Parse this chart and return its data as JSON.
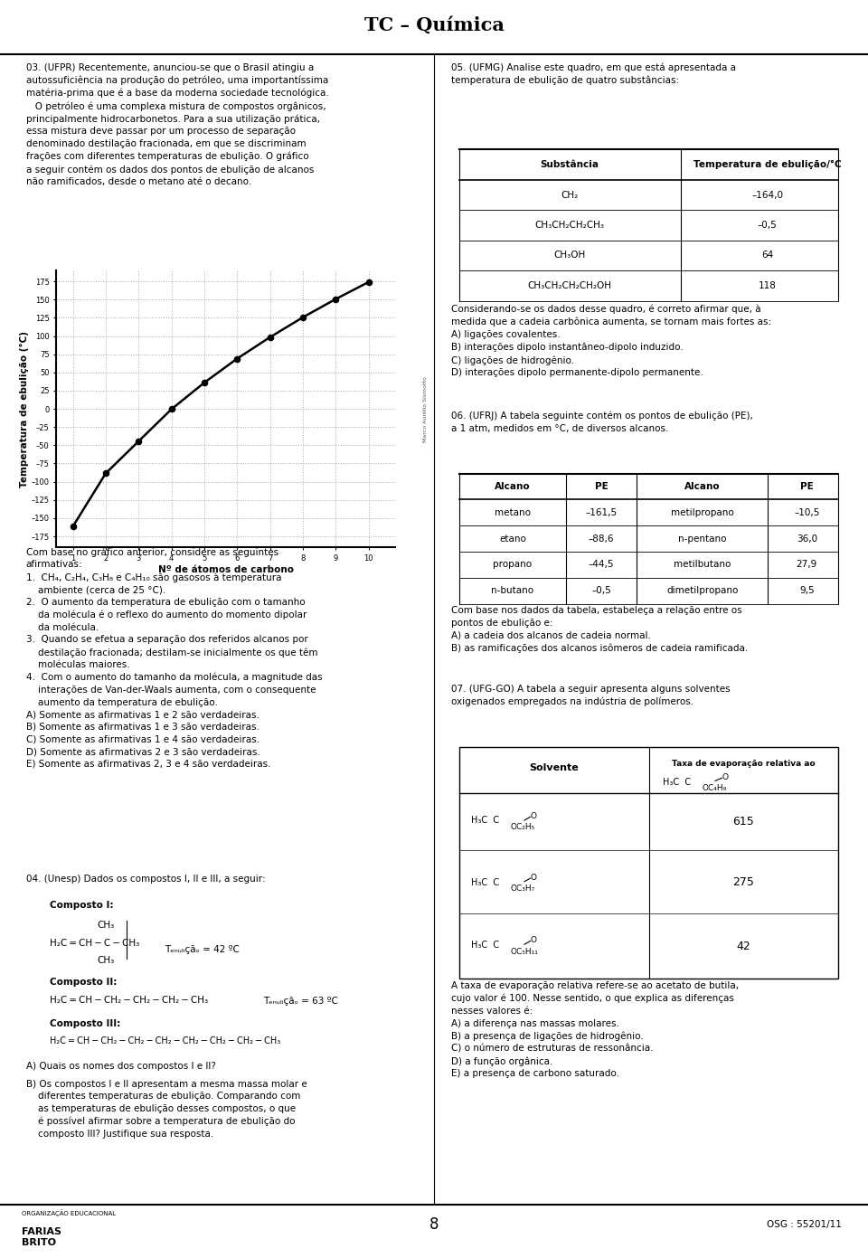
{
  "title": "TC – Química",
  "bg_color": "#ffffff",
  "text_color": "#000000",
  "page_number": "8",
  "osg": "OSG : 55201/11",
  "graph": {
    "x": [
      1,
      2,
      3,
      4,
      5,
      6,
      7,
      8,
      9,
      10
    ],
    "y": [
      -161.5,
      -88.6,
      -44.5,
      -0.5,
      36.0,
      69.0,
      98.4,
      125.7,
      150.8,
      174.1
    ],
    "xlabel": "Nº de átomos de carbono",
    "ylabel": "Temperatura de ebulição (°C)",
    "yticks": [
      -175,
      -150,
      -125,
      -100,
      -75,
      -50,
      -25,
      0,
      25,
      50,
      75,
      100,
      125,
      150,
      175
    ],
    "xticks": [
      1,
      2,
      3,
      4,
      5,
      6,
      7,
      8,
      9,
      10
    ],
    "ylim": [
      -190,
      190
    ],
    "xlim": [
      0.5,
      10.8
    ],
    "grid_color": "#aaaaaa",
    "line_color": "#000000",
    "dot_color": "#000000",
    "watermark": "Marco Aurélio Sismotto"
  },
  "q05_table": {
    "header": [
      "Substância",
      "Temperatura de ebulição/°C"
    ],
    "rows": [
      [
        "CH₂",
        "–164,0"
      ],
      [
        "CH₃CH₂CH₂CH₃",
        "–0,5"
      ],
      [
        "CH₃OH",
        "64"
      ],
      [
        "CH₃CH₂CH₂CH₂OH",
        "118"
      ]
    ]
  },
  "q06_table": {
    "header": [
      "Alcano",
      "PE",
      "Alcano",
      "PE"
    ],
    "rows": [
      [
        "metano",
        "–161,5",
        "metilpropano",
        "–10,5"
      ],
      [
        "etano",
        "–88,6",
        "n-pentano",
        "36,0"
      ],
      [
        "propano",
        "–44,5",
        "metilbutano",
        "27,9"
      ],
      [
        "n-butano",
        "–0,5",
        "dimetilpropano",
        "9,5"
      ]
    ]
  }
}
